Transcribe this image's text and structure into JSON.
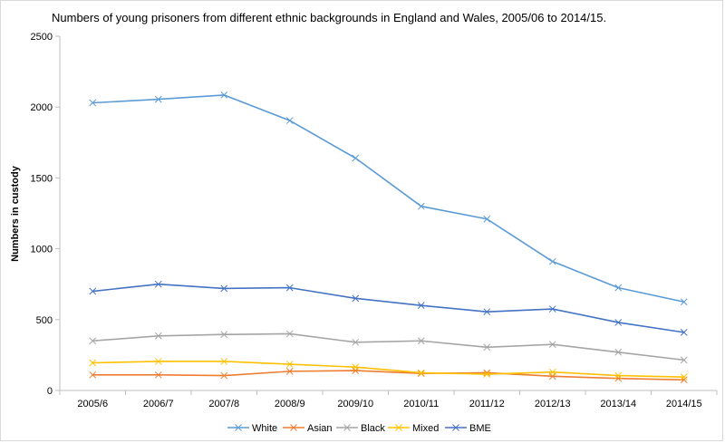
{
  "chart_data": {
    "type": "line",
    "title": "Numbers of young prisoners from different ethnic backgrounds in England and Wales, 2005/06 to 2014/15.",
    "xlabel": "",
    "ylabel": "Numbers in custody",
    "ylim": [
      0,
      2500
    ],
    "yticks": [
      0,
      500,
      1000,
      1500,
      2000,
      2500
    ],
    "categories": [
      "2005/6",
      "2006/7",
      "2007/8",
      "2008/9",
      "2009/10",
      "2010/11",
      "2011/12",
      "2012/13",
      "2013/14",
      "2014/15"
    ],
    "legend_position": "bottom",
    "grid": false,
    "series": [
      {
        "name": "White",
        "color": "#5b9bd5",
        "values": [
          2030,
          2055,
          2085,
          1905,
          1640,
          1300,
          1210,
          910,
          725,
          625
        ]
      },
      {
        "name": "Asian",
        "color": "#ed7d31",
        "values": [
          110,
          110,
          105,
          135,
          140,
          120,
          125,
          100,
          85,
          75
        ]
      },
      {
        "name": "Black",
        "color": "#a5a5a5",
        "values": [
          350,
          385,
          395,
          400,
          340,
          350,
          305,
          325,
          270,
          215
        ]
      },
      {
        "name": "Mixed",
        "color": "#ffc000",
        "values": [
          195,
          205,
          205,
          185,
          165,
          125,
          115,
          130,
          105,
          95
        ]
      },
      {
        "name": "BME",
        "color": "#4472c4",
        "values": [
          700,
          750,
          720,
          725,
          650,
          600,
          555,
          575,
          480,
          410
        ]
      }
    ]
  }
}
